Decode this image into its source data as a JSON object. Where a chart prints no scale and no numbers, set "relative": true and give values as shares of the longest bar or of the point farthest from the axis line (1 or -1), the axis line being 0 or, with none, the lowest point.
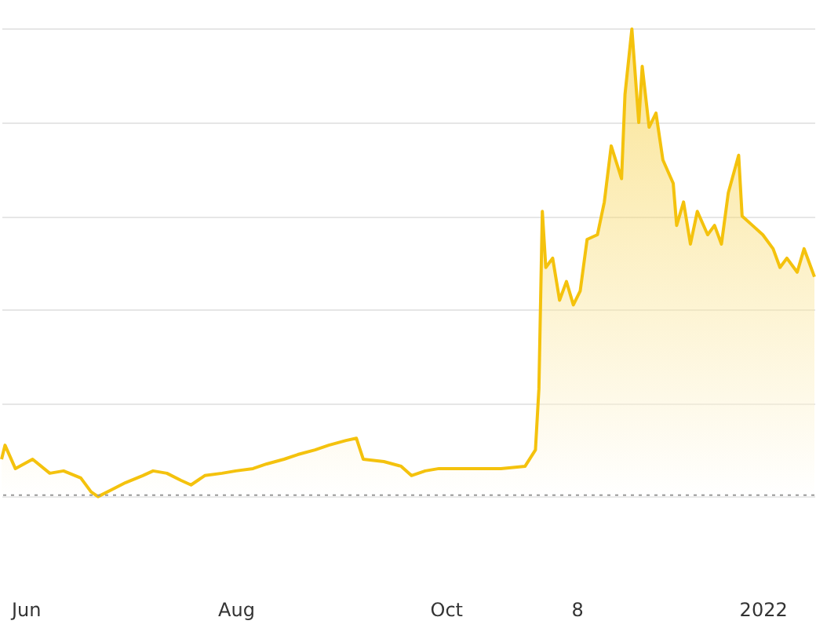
{
  "chart_data": {
    "type": "area",
    "relative": true,
    "x": [
      "2021-05-25",
      "2021-05-26",
      "2021-05-29",
      "2021-06-03",
      "2021-06-08",
      "2021-06-12",
      "2021-06-17",
      "2021-06-20",
      "2021-06-22",
      "2021-06-26",
      "2021-06-30",
      "2021-07-05",
      "2021-07-08",
      "2021-07-12",
      "2021-07-16",
      "2021-07-19",
      "2021-07-23",
      "2021-07-28",
      "2021-08-01",
      "2021-08-06",
      "2021-08-10",
      "2021-08-15",
      "2021-08-19",
      "2021-08-24",
      "2021-08-28",
      "2021-09-02",
      "2021-09-05",
      "2021-09-07",
      "2021-09-13",
      "2021-09-18",
      "2021-09-21",
      "2021-09-25",
      "2021-09-29",
      "2021-10-08",
      "2021-10-17",
      "2021-10-24",
      "2021-10-27",
      "2021-10-28",
      "2021-10-29",
      "2021-10-30",
      "2021-11-01",
      "2021-11-03",
      "2021-11-05",
      "2021-11-07",
      "2021-11-09",
      "2021-11-11",
      "2021-11-14",
      "2021-11-16",
      "2021-11-18",
      "2021-11-21",
      "2021-11-22",
      "2021-11-24",
      "2021-11-26",
      "2021-11-27",
      "2021-11-29",
      "2021-12-01",
      "2021-12-03",
      "2021-12-06",
      "2021-12-07",
      "2021-12-09",
      "2021-12-11",
      "2021-12-13",
      "2021-12-16",
      "2021-12-18",
      "2021-12-20",
      "2021-12-22",
      "2021-12-25",
      "2021-12-26",
      "2021-12-29",
      "2022-01-01",
      "2022-01-04",
      "2022-01-06",
      "2022-01-08",
      "2022-01-11",
      "2022-01-13",
      "2022-01-15",
      "2022-01-16"
    ],
    "series": [
      {
        "color": "#f4c20d",
        "values": [
          0.08,
          0.11,
          0.06,
          0.08,
          0.05,
          0.055,
          0.04,
          0.01,
          0,
          0.015,
          0.03,
          0.045,
          0.055,
          0.05,
          0.035,
          0.025,
          0.045,
          0.05,
          0.055,
          0.06,
          0.07,
          0.08,
          0.09,
          0.1,
          0.11,
          0.12,
          0.125,
          0.08,
          0.075,
          0.065,
          0.045,
          0.055,
          0.06,
          0.06,
          0.06,
          0.065,
          0.1,
          0.23,
          0.61,
          0.49,
          0.51,
          0.42,
          0.46,
          0.41,
          0.44,
          0.55,
          0.56,
          0.63,
          0.75,
          0.68,
          0.86,
          1,
          0.8,
          0.92,
          0.79,
          0.82,
          0.72,
          0.67,
          0.58,
          0.63,
          0.54,
          0.61,
          0.56,
          0.58,
          0.54,
          0.65,
          0.73,
          0.6,
          0.58,
          0.56,
          0.53,
          0.49,
          0.51,
          0.48,
          0.53,
          0.49,
          0.47
        ]
      }
    ],
    "xlim": [
      "2021-05-25",
      "2022-01-16"
    ],
    "xticks": [
      {
        "value": "2021-06-01",
        "label": "Jun"
      },
      {
        "value": "2021-08-01",
        "label": "Aug"
      },
      {
        "value": "2021-10-01",
        "label": "Oct"
      },
      {
        "value": "2021-11-08",
        "label": "8"
      },
      {
        "value": "2022-01-01",
        "label": "2022"
      }
    ],
    "ref_lines": [
      {
        "axis": "y",
        "value": 0.003,
        "color": "#999999",
        "line_style": "dotted"
      }
    ],
    "grid": "y",
    "marker": "none",
    "line_style": "solid"
  }
}
